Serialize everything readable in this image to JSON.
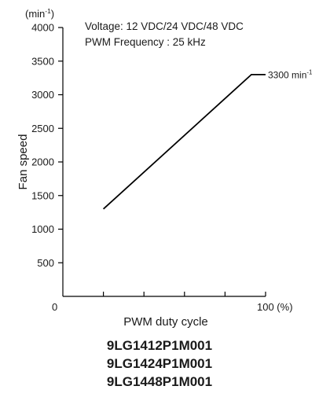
{
  "chart_data": {
    "type": "line",
    "ylabel": "Fan speed",
    "yunit": "(min",
    "yunit_sup": "-1",
    "xlabel": "PWM duty cycle",
    "annotations": [
      "Voltage: 12 VDC/24 VDC/48 VDC",
      "PWM Frequency : 25 kHz"
    ],
    "end_label": "3300 min",
    "end_label_sup": "-1",
    "y_ticks": [
      500,
      1000,
      1500,
      2000,
      2500,
      3000,
      3500,
      4000
    ],
    "x_tick_labels": [
      {
        "value": 0,
        "label": "0"
      },
      {
        "value": 100,
        "label": "100 (%)"
      }
    ],
    "x_minor_ticks": [
      20,
      40,
      60,
      80
    ],
    "xlim": [
      0,
      100
    ],
    "ylim": [
      0,
      4000
    ],
    "grid": false,
    "legend": "none",
    "series": [
      {
        "x": [
          20,
          93,
          100
        ],
        "y": [
          1300,
          3300,
          3300
        ]
      }
    ],
    "line_color": "#000000"
  },
  "models": [
    "9LG1412P1M001",
    "9LG1424P1M001",
    "9LG1448P1M001"
  ]
}
